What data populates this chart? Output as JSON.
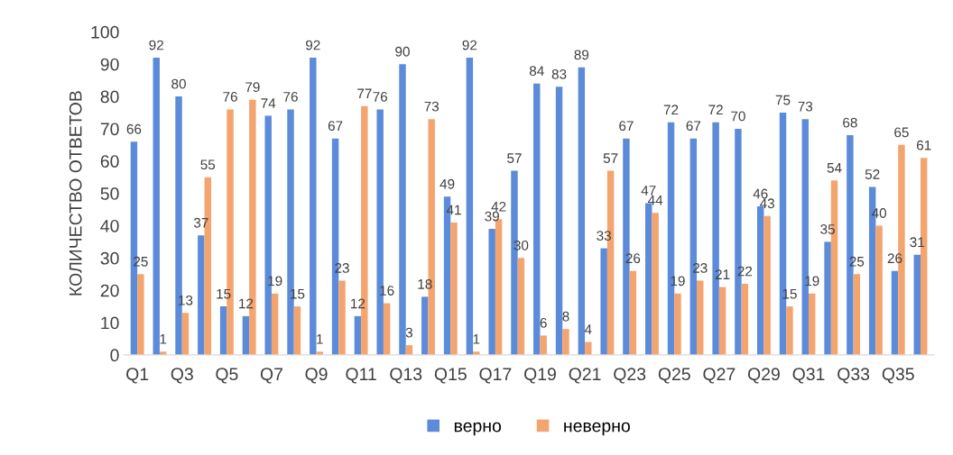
{
  "chart_data": {
    "type": "bar",
    "ylabel": "КОЛИЧЕСТВО ОТВЕТОВ",
    "categories": [
      "Q1",
      null,
      "Q3",
      null,
      "Q5",
      null,
      "Q7",
      null,
      "Q9",
      null,
      "Q11",
      null,
      "Q13",
      null,
      "Q15",
      null,
      "Q17",
      null,
      "Q19",
      null,
      "Q21",
      null,
      "Q23",
      null,
      "Q25",
      null,
      "Q27",
      null,
      "Q29",
      null,
      "Q31",
      null,
      "Q33",
      null,
      "Q35",
      null
    ],
    "series": [
      {
        "name": "верно",
        "color": "#5b8bd9",
        "values": [
          66,
          92,
          80,
          37,
          15,
          12,
          74,
          76,
          92,
          67,
          12,
          76,
          90,
          18,
          49,
          92,
          39,
          57,
          84,
          83,
          89,
          33,
          67,
          47,
          72,
          67,
          72,
          70,
          46,
          75,
          73,
          35,
          68,
          52,
          26,
          31
        ]
      },
      {
        "name": "неверно",
        "color": "#f4a46e",
        "values": [
          25,
          1,
          13,
          55,
          76,
          79,
          19,
          15,
          1,
          23,
          77,
          16,
          3,
          73,
          41,
          1,
          42,
          30,
          6,
          8,
          4,
          57,
          26,
          44,
          19,
          23,
          21,
          22,
          43,
          15,
          19,
          54,
          25,
          40,
          65,
          61
        ]
      }
    ],
    "ylim": [
      0,
      100
    ],
    "yticks": [
      0,
      10,
      20,
      30,
      40,
      50,
      60,
      70,
      80,
      90,
      100
    ],
    "data_labels": true,
    "grid": false,
    "legend": "bottom"
  }
}
